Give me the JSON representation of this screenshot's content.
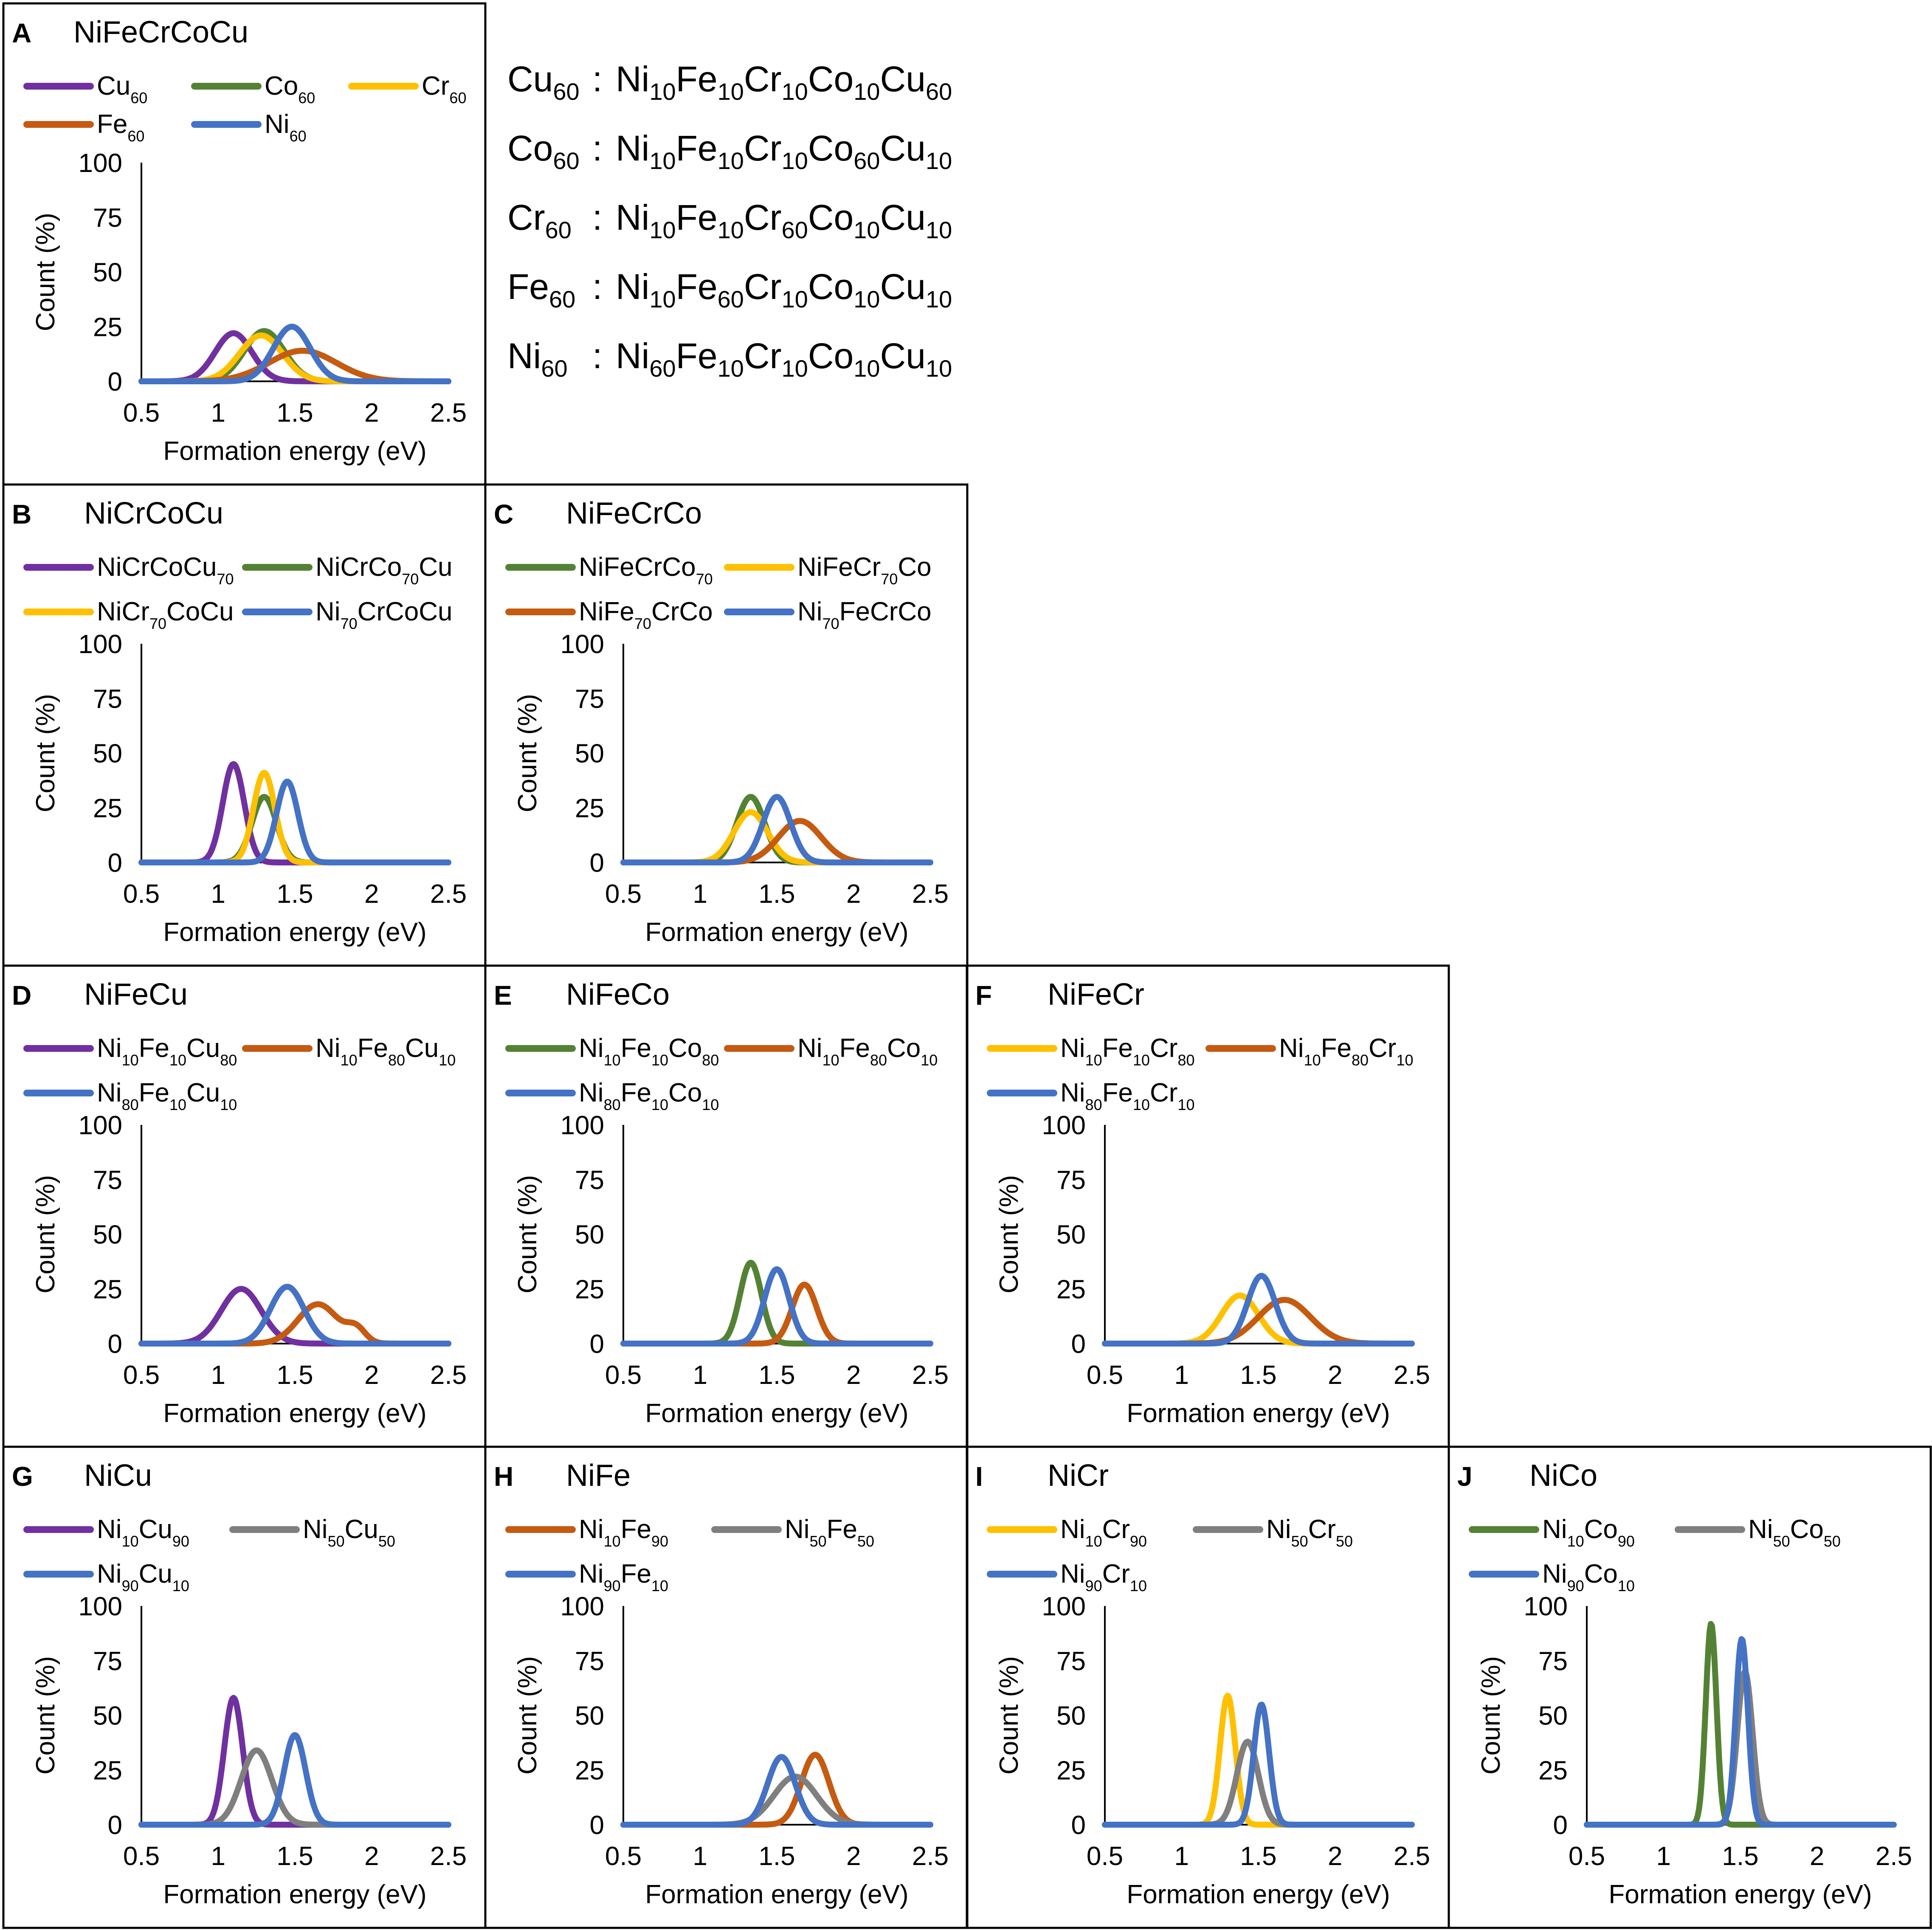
{
  "figure": {
    "x_axis_label": "Formation energy (eV)",
    "y_axis_label": "Count (%)",
    "x_ticks": [
      "0.5",
      "1",
      "1.5",
      "2",
      "2.5"
    ],
    "y_ticks": [
      "0",
      "25",
      "50",
      "75",
      "100"
    ]
  },
  "colors": {
    "purple": "#7030A0",
    "green": "#548235",
    "yellow": "#FFC000",
    "orange": "#C55A11",
    "blue": "#4472C4",
    "gray": "#7F7F7F"
  },
  "compositions": [
    {
      "label": "Cu60",
      "formula": "Ni10Fe10Cr10Co10Cu60"
    },
    {
      "label": "Co60",
      "formula": "Ni10Fe10Cr10Co60Cu10"
    },
    {
      "label": "Cr60",
      "formula": "Ni10Fe10Cr60Co10Cu10"
    },
    {
      "label": "Fe60",
      "formula": "Ni10Fe60Cr10Co10Cu10"
    },
    {
      "label": "Ni60",
      "formula": "Ni60Fe10Cr10Co10Cu10"
    }
  ],
  "chart_data": [
    {
      "type": "line",
      "panel": "A",
      "title": "NiFeCrCoCu",
      "xlabel": "Formation energy (eV)",
      "ylabel": "Count (%)",
      "xlim": [
        0.5,
        2.5
      ],
      "ylim": [
        0,
        100
      ],
      "series": [
        {
          "name": "Cu60",
          "color": "purple",
          "peaks": [
            {
              "mu": 1.1,
              "sigma": 0.12,
              "amp": 22
            }
          ]
        },
        {
          "name": "Co60",
          "color": "green",
          "peaks": [
            {
              "mu": 1.3,
              "sigma": 0.13,
              "amp": 23
            }
          ]
        },
        {
          "name": "Cr60",
          "color": "yellow",
          "peaks": [
            {
              "mu": 1.28,
              "sigma": 0.14,
              "amp": 21
            }
          ]
        },
        {
          "name": "Fe60",
          "color": "orange",
          "peaks": [
            {
              "mu": 1.55,
              "sigma": 0.22,
              "amp": 14
            }
          ]
        },
        {
          "name": "Ni60",
          "color": "blue",
          "peaks": [
            {
              "mu": 1.48,
              "sigma": 0.12,
              "amp": 25
            }
          ]
        }
      ]
    },
    {
      "type": "line",
      "panel": "B",
      "title": "NiCrCoCu",
      "xlabel": "Formation energy (eV)",
      "ylabel": "Count (%)",
      "xlim": [
        0.5,
        2.5
      ],
      "ylim": [
        0,
        100
      ],
      "series": [
        {
          "name": "NiCrCoCu70",
          "color": "purple",
          "peaks": [
            {
              "mu": 1.1,
              "sigma": 0.07,
              "amp": 45
            }
          ]
        },
        {
          "name": "NiCrCo70Cu",
          "color": "green",
          "peaks": [
            {
              "mu": 1.3,
              "sigma": 0.08,
              "amp": 30
            }
          ]
        },
        {
          "name": "NiCr70CoCu",
          "color": "yellow",
          "peaks": [
            {
              "mu": 1.3,
              "sigma": 0.07,
              "amp": 41
            }
          ]
        },
        {
          "name": "Ni70CrCoCu",
          "color": "blue",
          "peaks": [
            {
              "mu": 1.45,
              "sigma": 0.07,
              "amp": 37
            }
          ]
        }
      ]
    },
    {
      "type": "line",
      "panel": "C",
      "title": "NiFeCrCo",
      "xlabel": "Formation energy (eV)",
      "ylabel": "Count (%)",
      "xlim": [
        0.5,
        2.5
      ],
      "ylim": [
        0,
        100
      ],
      "series": [
        {
          "name": "NiFeCrCo70",
          "color": "green",
          "peaks": [
            {
              "mu": 1.33,
              "sigma": 0.09,
              "amp": 30
            }
          ]
        },
        {
          "name": "NiFeCr70Co",
          "color": "yellow",
          "peaks": [
            {
              "mu": 1.33,
              "sigma": 0.11,
              "amp": 23
            }
          ]
        },
        {
          "name": "NiFe70CrCo",
          "color": "orange",
          "peaks": [
            {
              "mu": 1.65,
              "sigma": 0.14,
              "amp": 19
            }
          ]
        },
        {
          "name": "Ni70FeCrCo",
          "color": "blue",
          "peaks": [
            {
              "mu": 1.5,
              "sigma": 0.09,
              "amp": 30
            }
          ]
        }
      ]
    },
    {
      "type": "line",
      "panel": "D",
      "title": "NiFeCu",
      "xlabel": "Formation energy (eV)",
      "ylabel": "Count (%)",
      "xlim": [
        0.5,
        2.5
      ],
      "ylim": [
        0,
        100
      ],
      "series": [
        {
          "name": "Ni10Fe10Cu80",
          "color": "purple",
          "peaks": [
            {
              "mu": 1.15,
              "sigma": 0.13,
              "amp": 25
            }
          ]
        },
        {
          "name": "Ni10Fe80Cu10",
          "color": "orange",
          "peaks": [
            {
              "mu": 1.65,
              "sigma": 0.13,
              "amp": 18
            },
            {
              "mu": 1.9,
              "sigma": 0.06,
              "amp": 6
            }
          ]
        },
        {
          "name": "Ni80Fe10Cu10",
          "color": "blue",
          "peaks": [
            {
              "mu": 1.45,
              "sigma": 0.11,
              "amp": 26
            }
          ]
        }
      ]
    },
    {
      "type": "line",
      "panel": "E",
      "title": "NiFeCo",
      "xlabel": "Formation energy (eV)",
      "ylabel": "Count (%)",
      "xlim": [
        0.5,
        2.5
      ],
      "ylim": [
        0,
        100
      ],
      "series": [
        {
          "name": "Ni10Fe10Co80",
          "color": "green",
          "peaks": [
            {
              "mu": 1.33,
              "sigma": 0.07,
              "amp": 37
            }
          ]
        },
        {
          "name": "Ni10Fe80Co10",
          "color": "orange",
          "peaks": [
            {
              "mu": 1.68,
              "sigma": 0.08,
              "amp": 27
            }
          ]
        },
        {
          "name": "Ni80Fe10Co10",
          "color": "blue",
          "peaks": [
            {
              "mu": 1.5,
              "sigma": 0.08,
              "amp": 34
            }
          ]
        }
      ]
    },
    {
      "type": "line",
      "panel": "F",
      "title": "NiFeCr",
      "xlabel": "Formation energy (eV)",
      "ylabel": "Count (%)",
      "xlim": [
        0.5,
        2.5
      ],
      "ylim": [
        0,
        100
      ],
      "series": [
        {
          "name": "Ni10Fe10Cr80",
          "color": "yellow",
          "peaks": [
            {
              "mu": 1.38,
              "sigma": 0.12,
              "amp": 22
            }
          ]
        },
        {
          "name": "Ni10Fe80Cr10",
          "color": "orange",
          "peaks": [
            {
              "mu": 1.67,
              "sigma": 0.17,
              "amp": 20
            }
          ]
        },
        {
          "name": "Ni80Fe10Cr10",
          "color": "blue",
          "peaks": [
            {
              "mu": 1.52,
              "sigma": 0.09,
              "amp": 31
            }
          ]
        }
      ]
    },
    {
      "type": "line",
      "panel": "G",
      "title": "NiCu",
      "xlabel": "Formation energy (eV)",
      "ylabel": "Count (%)",
      "xlim": [
        0.5,
        2.5
      ],
      "ylim": [
        0,
        100
      ],
      "series": [
        {
          "name": "Ni10Cu90",
          "color": "purple",
          "peaks": [
            {
              "mu": 1.1,
              "sigma": 0.06,
              "amp": 58
            }
          ]
        },
        {
          "name": "Ni50Cu50",
          "color": "gray",
          "peaks": [
            {
              "mu": 1.25,
              "sigma": 0.1,
              "amp": 34
            }
          ]
        },
        {
          "name": "Ni90Cu10",
          "color": "blue",
          "peaks": [
            {
              "mu": 1.5,
              "sigma": 0.07,
              "amp": 41
            }
          ]
        }
      ]
    },
    {
      "type": "line",
      "panel": "H",
      "title": "NiFe",
      "xlabel": "Formation energy (eV)",
      "ylabel": "Count (%)",
      "xlim": [
        0.5,
        2.5
      ],
      "ylim": [
        0,
        100
      ],
      "series": [
        {
          "name": "Ni10Fe90",
          "color": "orange",
          "peaks": [
            {
              "mu": 1.75,
              "sigma": 0.09,
              "amp": 32
            }
          ]
        },
        {
          "name": "Ni50Fe50",
          "color": "gray",
          "peaks": [
            {
              "mu": 1.62,
              "sigma": 0.14,
              "amp": 22
            }
          ]
        },
        {
          "name": "Ni90Fe10",
          "color": "blue",
          "peaks": [
            {
              "mu": 1.53,
              "sigma": 0.09,
              "amp": 31
            }
          ]
        }
      ]
    },
    {
      "type": "line",
      "panel": "I",
      "title": "NiCr",
      "xlabel": "Formation energy (eV)",
      "ylabel": "Count (%)",
      "xlim": [
        0.5,
        2.5
      ],
      "ylim": [
        0,
        100
      ],
      "series": [
        {
          "name": "Ni10Cr90",
          "color": "yellow",
          "peaks": [
            {
              "mu": 1.3,
              "sigma": 0.05,
              "amp": 59
            }
          ]
        },
        {
          "name": "Ni50Cr50",
          "color": "gray",
          "peaks": [
            {
              "mu": 1.43,
              "sigma": 0.07,
              "amp": 38
            }
          ]
        },
        {
          "name": "Ni90Cr10",
          "color": "blue",
          "peaks": [
            {
              "mu": 1.52,
              "sigma": 0.05,
              "amp": 55
            }
          ]
        }
      ]
    },
    {
      "type": "line",
      "panel": "J",
      "title": "NiCo",
      "xlabel": "Formation energy (eV)",
      "ylabel": "Count (%)",
      "xlim": [
        0.5,
        2.5
      ],
      "ylim": [
        0,
        100
      ],
      "series": [
        {
          "name": "Ni10Co90",
          "color": "green",
          "peaks": [
            {
              "mu": 1.31,
              "sigma": 0.035,
              "amp": 92
            }
          ]
        },
        {
          "name": "Ni50Co50",
          "color": "gray",
          "peaks": [
            {
              "mu": 1.53,
              "sigma": 0.05,
              "amp": 70
            }
          ]
        },
        {
          "name": "Ni90Co10",
          "color": "blue",
          "peaks": [
            {
              "mu": 1.51,
              "sigma": 0.04,
              "amp": 85
            }
          ]
        }
      ]
    }
  ]
}
